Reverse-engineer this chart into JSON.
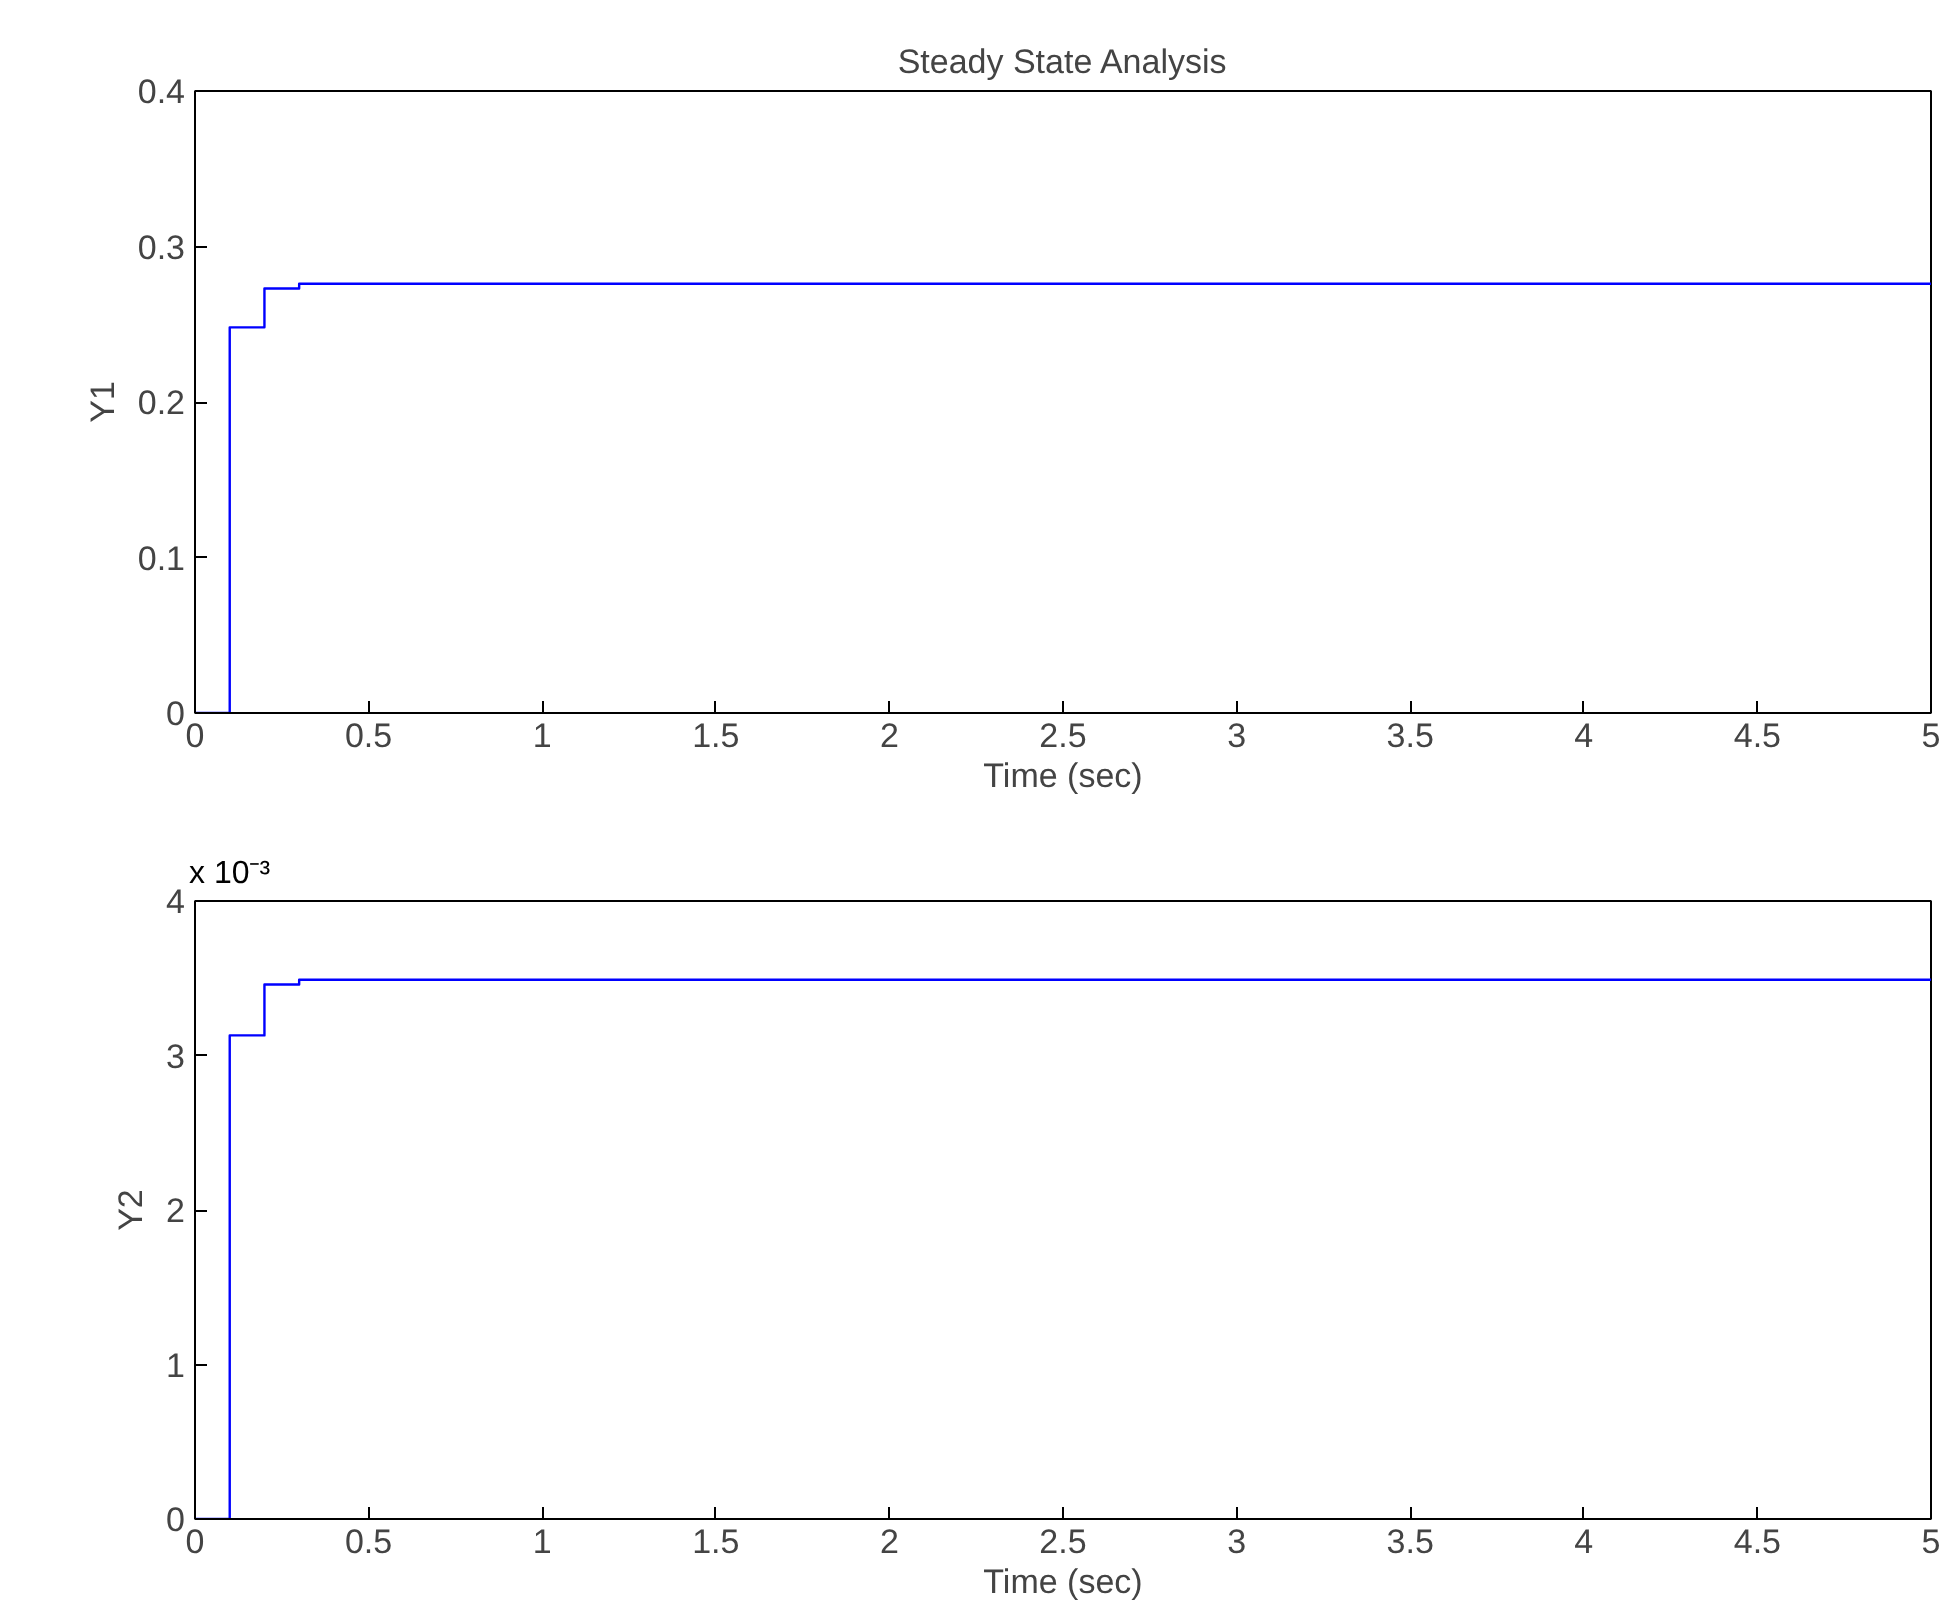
{
  "chart_data": [
    {
      "type": "step",
      "title": "Steady State Analysis",
      "xlabel": "Time (sec)",
      "ylabel": "Y1",
      "x": [
        0,
        0.1,
        0.2,
        0.3,
        5
      ],
      "series": [
        {
          "color": "#0000ff",
          "values": [
            0,
            0.248,
            0.273,
            0.276,
            0.276
          ]
        }
      ],
      "xlim": [
        0,
        5
      ],
      "xticks": [
        0,
        0.5,
        1,
        1.5,
        2,
        2.5,
        3,
        3.5,
        4,
        4.5,
        5
      ],
      "ylim": [
        0,
        0.4
      ],
      "yticks": [
        0,
        0.1,
        0.2,
        0.3,
        0.4
      ],
      "grid": false
    },
    {
      "type": "step",
      "xlabel": "Time (sec)",
      "ylabel": "Y2",
      "x": [
        0,
        0.1,
        0.2,
        0.3,
        5
      ],
      "series": [
        {
          "color": "#0000ff",
          "values": [
            0,
            3.13,
            3.46,
            3.49,
            3.49
          ]
        }
      ],
      "xlim": [
        0,
        5
      ],
      "xticks": [
        0,
        0.5,
        1,
        1.5,
        2,
        2.5,
        3,
        3.5,
        4,
        4.5,
        5
      ],
      "ylim": [
        0,
        4
      ],
      "yticks": [
        0,
        1,
        2,
        3,
        4
      ],
      "annotations": [
        "x 10⁻³"
      ],
      "grid": false
    }
  ]
}
